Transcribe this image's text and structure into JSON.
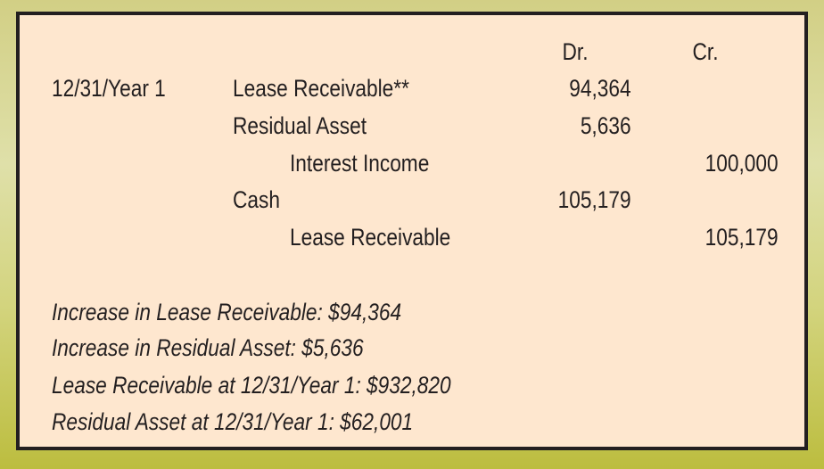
{
  "headers": {
    "dr": "Dr.",
    "cr": "Cr."
  },
  "entry": {
    "date": "12/31/Year 1",
    "lines": [
      {
        "account": "Lease Receivable**",
        "dr": "94,364",
        "cr": ""
      },
      {
        "account": "Residual Asset",
        "dr": "5,636",
        "cr": ""
      },
      {
        "account": "Interest Income",
        "dr": "",
        "cr": "100,000"
      },
      {
        "account": "Cash",
        "dr": "105,179",
        "cr": ""
      },
      {
        "account": "Lease Receivable",
        "dr": "",
        "cr": "105,179"
      }
    ]
  },
  "notes": [
    "Increase in Lease Receivable: $94,364",
    "Increase in Residual Asset: $5,636",
    "Lease Receivable at 12/31/Year 1: $932,820",
    "Residual Asset at 12/31/Year 1: $62,001"
  ]
}
